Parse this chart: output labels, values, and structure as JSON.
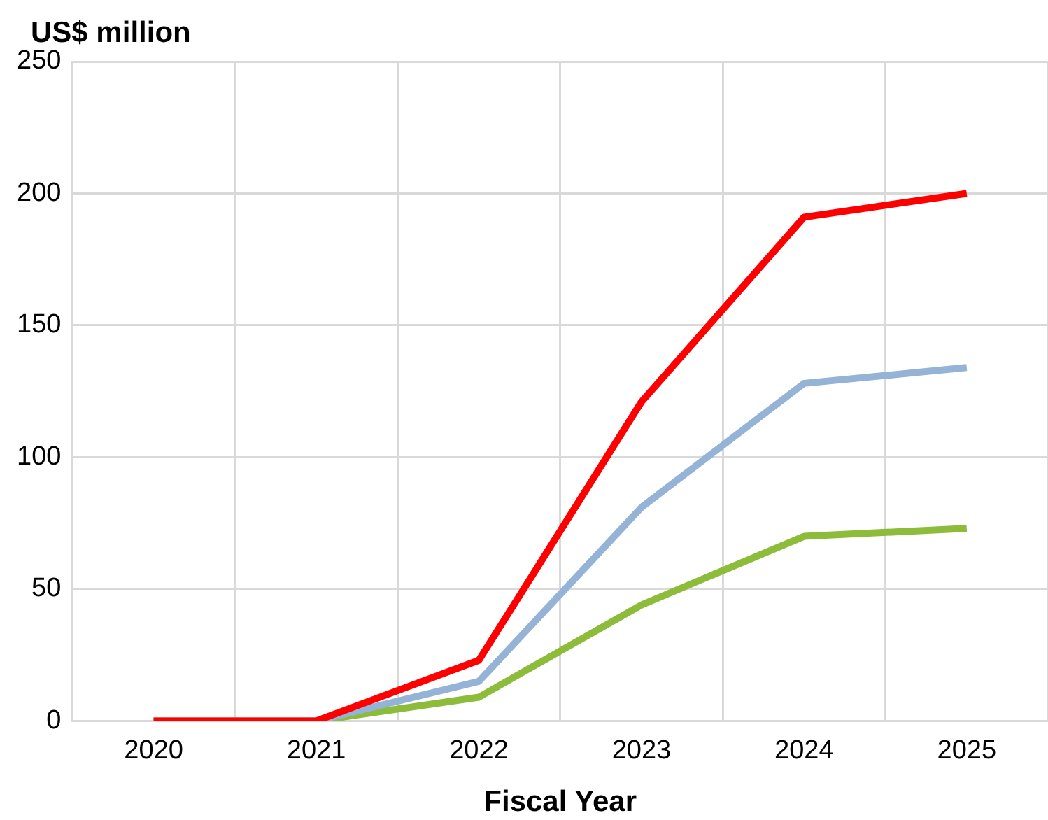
{
  "chart_data": {
    "type": "line",
    "ylabel": "US$ million",
    "xlabel": "Fiscal Year",
    "categories": [
      "2020",
      "2021",
      "2022",
      "2023",
      "2024",
      "2025"
    ],
    "series": [
      {
        "color": "#ff0000",
        "values": [
          0,
          0,
          23,
          121,
          191,
          200
        ]
      },
      {
        "color": "#95b3d7",
        "values": [
          0,
          0,
          15,
          81,
          128,
          134
        ]
      },
      {
        "color": "#8dbb3a",
        "values": [
          0,
          0,
          9,
          44,
          70,
          73
        ]
      }
    ],
    "ylim": [
      0,
      250
    ],
    "yticks": [
      0,
      50,
      100,
      150,
      200,
      250
    ],
    "grid": true,
    "legend": false,
    "marker": "none",
    "line_style": "solid"
  }
}
